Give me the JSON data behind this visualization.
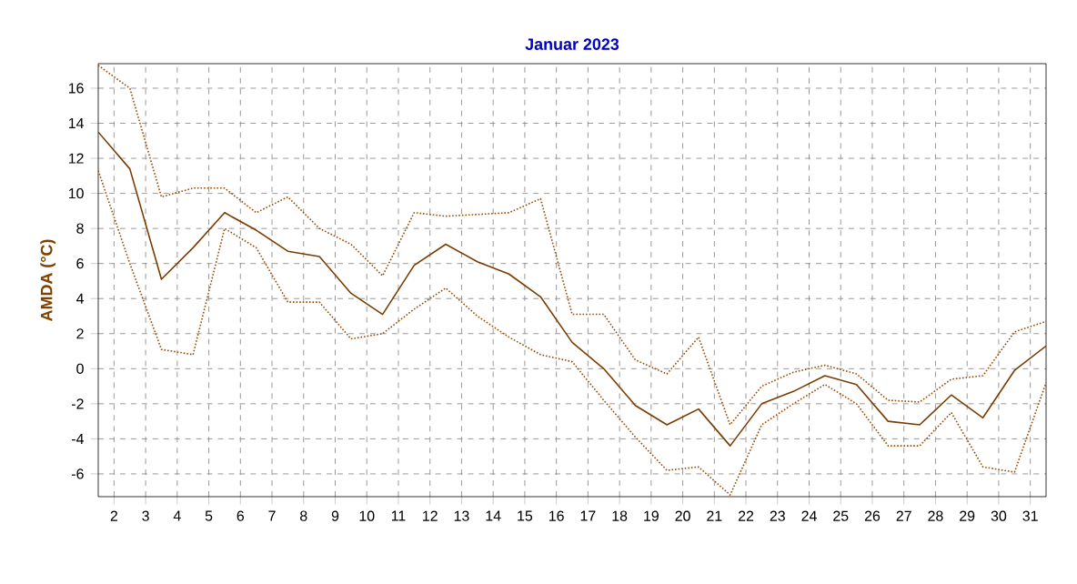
{
  "chart_data": {
    "type": "line",
    "title": "Januar 2023",
    "ylabel": "AMDA (°C)",
    "x": [
      1.5,
      2.5,
      3.5,
      4.5,
      5.5,
      6.5,
      7.5,
      8.5,
      9.5,
      10.5,
      11.5,
      12.5,
      13.5,
      14.5,
      15.5,
      16.5,
      17.5,
      18.5,
      19.5,
      20.5,
      21.5,
      22.5,
      23.5,
      24.5,
      25.5,
      26.5,
      27.5,
      28.5,
      29.5,
      30.5,
      31.5
    ],
    "series": [
      {
        "color": "#7a3c00",
        "line_style": "solid",
        "values": [
          13.5,
          11.4,
          5.1,
          6.9,
          8.9,
          7.9,
          6.7,
          6.4,
          4.3,
          3.1,
          5.9,
          7.1,
          6.1,
          5.4,
          4.1,
          1.5,
          0.0,
          -2.1,
          -3.2,
          -2.3,
          -4.4,
          -2.0,
          -1.3,
          -0.4,
          -0.9,
          -3.0,
          -3.2,
          -1.5,
          -2.8,
          -0.1,
          1.3
        ]
      },
      {
        "color": "#9a4a00",
        "line_style": "dotted",
        "values": [
          17.3,
          16.0,
          9.8,
          10.3,
          10.3,
          8.9,
          9.8,
          8.0,
          7.1,
          5.3,
          8.9,
          8.7,
          8.8,
          8.9,
          9.7,
          3.1,
          3.1,
          0.5,
          -0.3,
          1.8,
          -3.2,
          -1.0,
          -0.2,
          0.2,
          -0.3,
          -1.8,
          -1.9,
          -0.6,
          -0.4,
          2.1,
          2.7
        ]
      },
      {
        "color": "#9a4a00",
        "line_style": "dotted",
        "values": [
          11.3,
          6.0,
          1.1,
          0.8,
          8.0,
          6.9,
          3.8,
          3.8,
          1.7,
          2.0,
          3.4,
          4.6,
          3.0,
          1.8,
          0.8,
          0.4,
          -1.8,
          -3.9,
          -5.8,
          -5.6,
          -7.2,
          -3.2,
          -2.0,
          -0.9,
          -2.0,
          -4.4,
          -4.4,
          -2.5,
          -5.6,
          -5.9,
          -0.8
        ]
      }
    ],
    "xlim": [
      1.5,
      31.5
    ],
    "xticks": [
      2,
      3,
      4,
      5,
      6,
      7,
      8,
      9,
      10,
      11,
      12,
      13,
      14,
      15,
      16,
      17,
      18,
      19,
      20,
      21,
      22,
      23,
      24,
      25,
      26,
      27,
      28,
      29,
      30,
      31
    ],
    "ylim": [
      -7.3,
      17.4
    ],
    "yticks": [
      -6,
      -4,
      -2,
      0,
      2,
      4,
      6,
      8,
      10,
      12,
      14,
      16
    ],
    "grid": true,
    "marker": "none"
  }
}
